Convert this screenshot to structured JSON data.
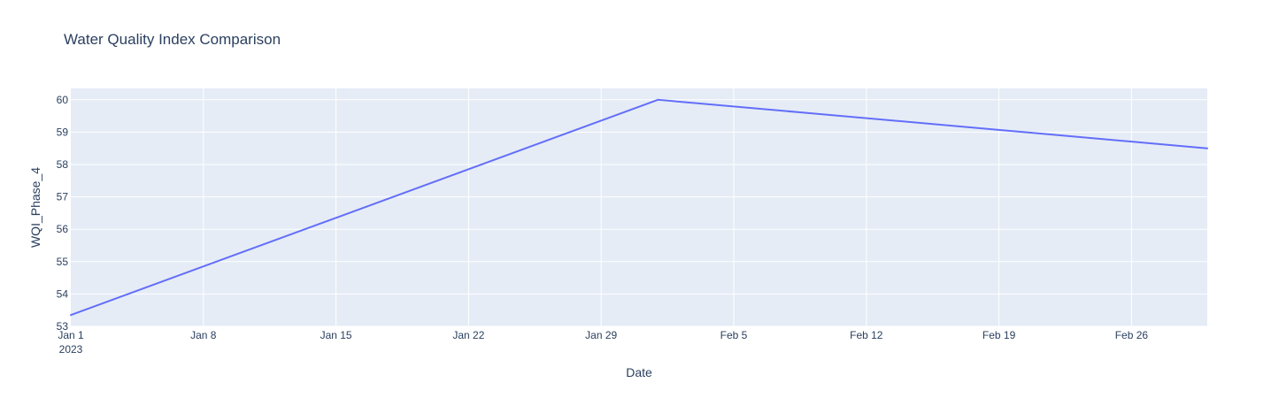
{
  "chart_data": {
    "type": "line",
    "title": "Water Quality Index Comparison",
    "xlabel": "Date",
    "ylabel": "WQI_Phase_4",
    "x_axis_type": "date",
    "xlim": [
      "2023-01-01",
      "2023-03-02"
    ],
    "ylim": [
      53,
      60.35
    ],
    "x_ticks": [
      {
        "date": "2023-01-01",
        "label": "Jan 1",
        "sublabel": "2023"
      },
      {
        "date": "2023-01-08",
        "label": "Jan 8"
      },
      {
        "date": "2023-01-15",
        "label": "Jan 15"
      },
      {
        "date": "2023-01-22",
        "label": "Jan 22"
      },
      {
        "date": "2023-01-29",
        "label": "Jan 29"
      },
      {
        "date": "2023-02-05",
        "label": "Feb 5"
      },
      {
        "date": "2023-02-12",
        "label": "Feb 12"
      },
      {
        "date": "2023-02-19",
        "label": "Feb 19"
      },
      {
        "date": "2023-02-26",
        "label": "Feb 26"
      }
    ],
    "y_ticks": [
      53,
      54,
      55,
      56,
      57,
      58,
      59,
      60
    ],
    "grid": true,
    "series": [
      {
        "color": "#636efa",
        "x": [
          "2023-01-01",
          "2023-02-01",
          "2023-03-02"
        ],
        "y": [
          53.35,
          60.0,
          58.5
        ]
      }
    ]
  },
  "colors": {
    "plot_background": "#e5ecf6",
    "grid": "#ffffff",
    "text": "#2a3f5f"
  }
}
